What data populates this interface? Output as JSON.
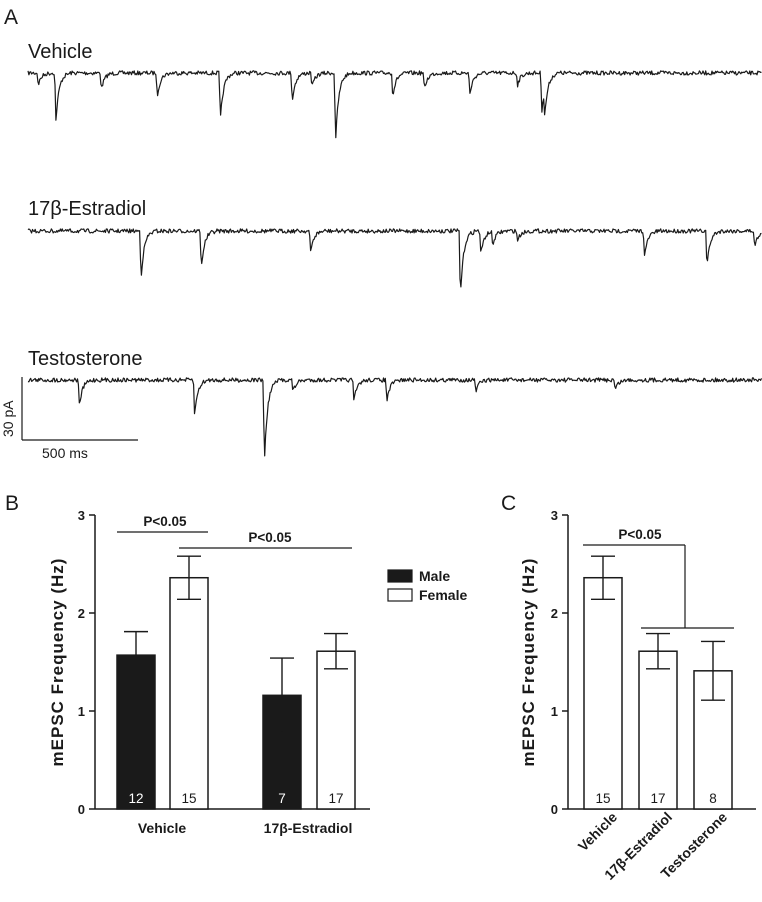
{
  "figure": {
    "panels": {
      "a": "A",
      "b": "B",
      "c": "C"
    }
  },
  "traces": [
    {
      "label": "Vehicle",
      "events": [
        [
          0.014,
          -0.25
        ],
        [
          0.038,
          -1.0
        ],
        [
          0.1,
          -0.35
        ],
        [
          0.176,
          -0.5
        ],
        [
          0.262,
          -1.0
        ],
        [
          0.36,
          -0.6
        ],
        [
          0.387,
          -0.3
        ],
        [
          0.419,
          -1.45
        ],
        [
          0.497,
          -0.5
        ],
        [
          0.54,
          -0.35
        ],
        [
          0.602,
          -0.45
        ],
        [
          0.667,
          -0.25
        ],
        [
          0.7,
          -0.8
        ],
        [
          0.704,
          -0.6
        ]
      ]
    },
    {
      "label": "17β-Estradiol",
      "events": [
        [
          0.154,
          -1.0
        ],
        [
          0.236,
          -0.8
        ],
        [
          0.385,
          -0.45
        ],
        [
          0.589,
          -1.4
        ],
        [
          0.617,
          -0.5
        ],
        [
          0.633,
          -0.3
        ],
        [
          0.667,
          -0.2
        ],
        [
          0.84,
          -0.55
        ],
        [
          0.925,
          -0.75
        ],
        [
          0.99,
          -0.35
        ]
      ]
    },
    {
      "label": "Testosterone",
      "events": [
        [
          0.07,
          -0.55
        ],
        [
          0.227,
          -0.75
        ],
        [
          0.322,
          -1.75
        ],
        [
          0.361,
          -0.25
        ],
        [
          0.444,
          -0.45
        ],
        [
          0.489,
          -0.45
        ],
        [
          0.61,
          -0.25
        ],
        [
          0.8,
          -0.2
        ]
      ]
    }
  ],
  "scale_bar": {
    "y_label": "30 pA",
    "x_label": "500 ms"
  },
  "chart_data": [
    {
      "type": "bar",
      "panel": "B",
      "ylabel": "mEPSC Frequency (Hz)",
      "ylim": [
        0,
        3
      ],
      "yticks": [
        "0",
        "1",
        "2",
        "3"
      ],
      "categories": [
        "Vehicle",
        "17β-Estradiol"
      ],
      "series": [
        {
          "name": "Male",
          "color": "#1a1a1a",
          "values": [
            1.57,
            1.16
          ],
          "errors": [
            0.24,
            0.38
          ],
          "n": [
            "12",
            "7"
          ]
        },
        {
          "name": "Female",
          "color": "#ffffff",
          "values": [
            2.36,
            1.61
          ],
          "errors": [
            0.22,
            0.18
          ],
          "n": [
            "15",
            "17"
          ]
        }
      ],
      "legend": {
        "position": "right",
        "entries": [
          "Male",
          "Female"
        ]
      },
      "significance": [
        {
          "label": "P<0.05",
          "between": "Vehicle Male vs Vehicle Female"
        },
        {
          "label": "P<0.05",
          "between": "Vehicle Female vs 17β-Estradiol"
        }
      ]
    },
    {
      "type": "bar",
      "panel": "C",
      "ylabel": "mEPSC Frequency (Hz)",
      "ylim": [
        0,
        3
      ],
      "yticks": [
        "0",
        "1",
        "2",
        "3"
      ],
      "categories": [
        "Vehicle",
        "17β-Estradiol",
        "Testosterone"
      ],
      "series": [
        {
          "name": "",
          "color": "#ffffff",
          "values": [
            2.36,
            1.61,
            1.41
          ],
          "errors": [
            0.22,
            0.18,
            0.3
          ],
          "n": [
            "15",
            "17",
            "8"
          ]
        }
      ],
      "significance": [
        {
          "label": "P<0.05",
          "between": "Vehicle vs 17β-Estradiol and Testosterone"
        }
      ]
    }
  ]
}
